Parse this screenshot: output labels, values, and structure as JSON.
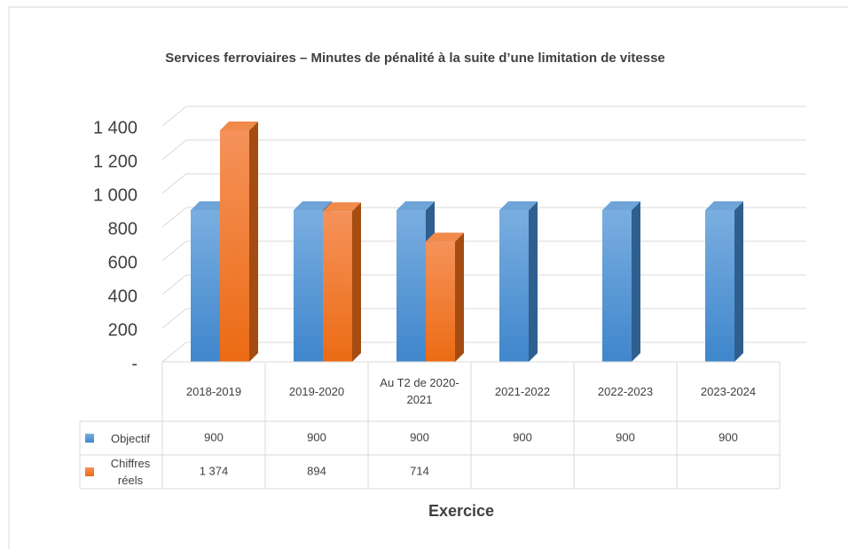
{
  "chart_data": {
    "type": "bar3d",
    "title": "Services ferroviaires – Minutes de pénalité à la suite d’une limitation de vitesse",
    "x_label": "Exercice",
    "categories": [
      "2018-2019",
      "2019-2020",
      "Au T2 de 2020-2021",
      "2021-2022",
      "2022-2023",
      "2023-2024"
    ],
    "series": [
      {
        "name": "Objectif",
        "color": "#5b9bd5",
        "values": [
          900,
          900,
          900,
          900,
          900,
          900
        ]
      },
      {
        "name": "Chiffres réels",
        "color": "#ed7d31",
        "values": [
          1374,
          894,
          714,
          null,
          null,
          null
        ],
        "value_labels": [
          "1 374",
          "894",
          "714",
          null,
          null,
          null
        ]
      }
    ],
    "ylim": [
      0,
      1400
    ],
    "yticks": [
      {
        "value": 0,
        "label": "-"
      },
      200,
      400,
      600,
      800,
      {
        "value": 1000,
        "label": "1 000"
      },
      {
        "value": 1200,
        "label": "1 200"
      },
      {
        "value": 1400,
        "label": "1 400"
      }
    ],
    "grid": true
  }
}
